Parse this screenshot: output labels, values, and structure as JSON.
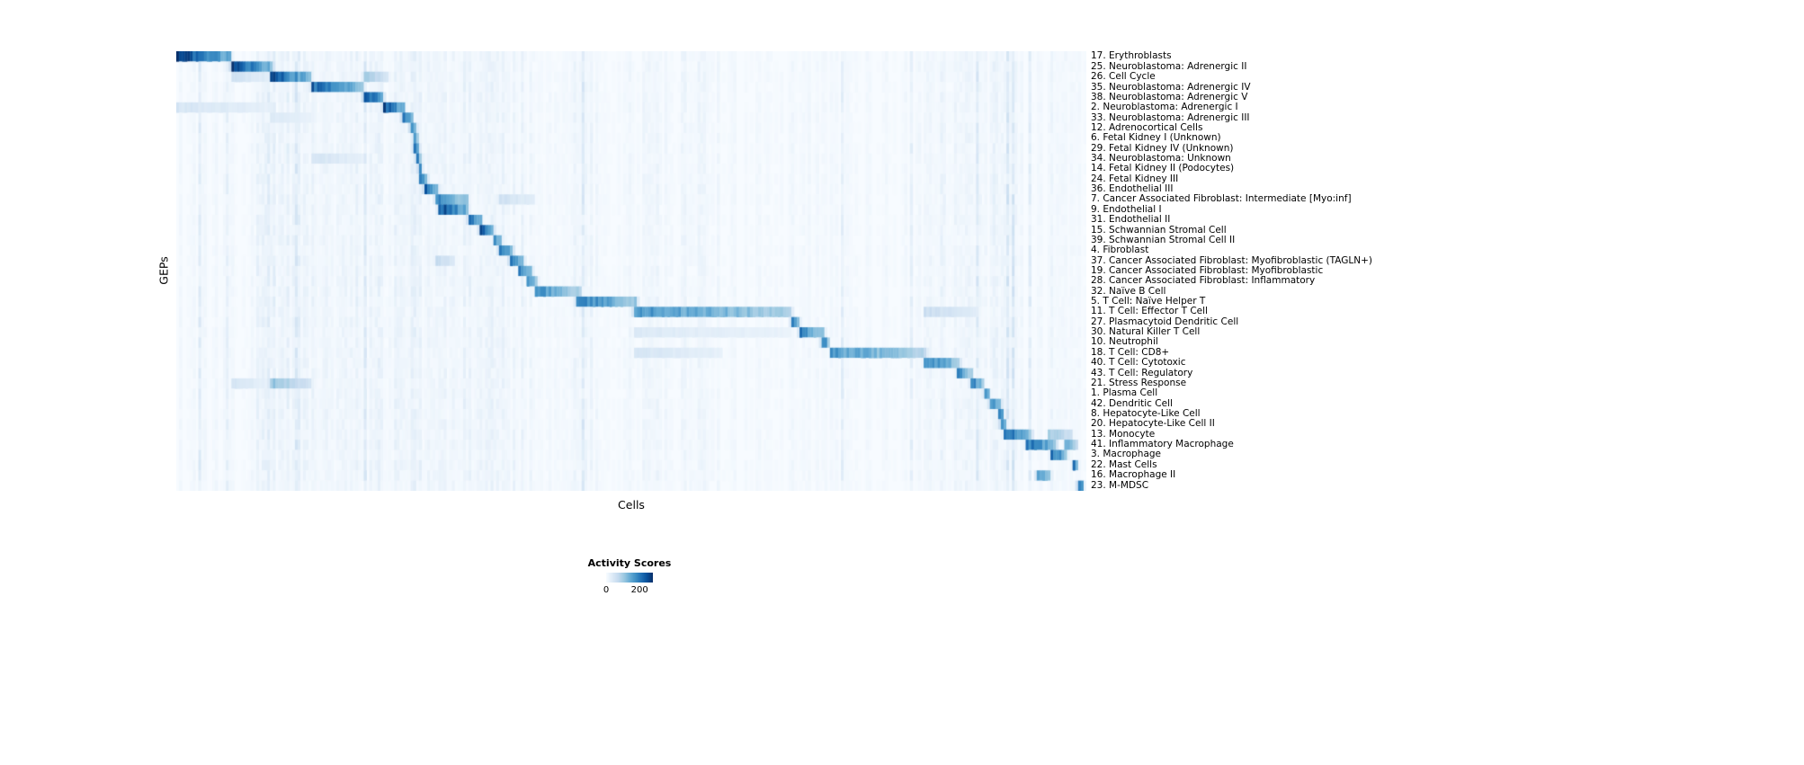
{
  "figure": {
    "ylabel": "GEPs",
    "xlabel": "Cells"
  },
  "legend": {
    "title": "Activity Scores",
    "min_label": "0",
    "max_label": "200",
    "min_value": 0,
    "max_value": 200
  },
  "chart_data": {
    "type": "heatmap",
    "title": "",
    "xlabel": "Cells",
    "ylabel": "GEPs",
    "colormap": "Blues",
    "colormap_stops": [
      "#f7fbff",
      "#deebf7",
      "#c6dbef",
      "#9ecae1",
      "#6baed6",
      "#4292c6",
      "#2171b5",
      "#08519c",
      "#08306b"
    ],
    "colorbar_ticks": [
      0,
      200
    ],
    "scale_domain": [
      0,
      280
    ],
    "legend_position": "bottom-center",
    "grid": false,
    "rows": [
      {
        "label": "17. Erythroblasts",
        "band": [
          0.0,
          0.062
        ],
        "peak": 280
      },
      {
        "label": "25. Neuroblastoma: Adrenergic II",
        "band": [
          0.062,
          0.107
        ],
        "peak": 260
      },
      {
        "label": "26. Cell Cycle",
        "band": [
          0.103,
          0.149
        ],
        "peak": 260,
        "secondary": [
          [
            0.205,
            0.232,
            110
          ],
          [
            0.062,
            0.103,
            60
          ]
        ]
      },
      {
        "label": "35. Neuroblastoma: Adrenergic IV",
        "band": [
          0.148,
          0.207
        ],
        "peak": 240
      },
      {
        "label": "38. Neuroblastoma: Adrenergic V",
        "band": [
          0.207,
          0.228
        ],
        "peak": 280
      },
      {
        "label": "2. Neuroblastoma: Adrenergic I",
        "band": [
          0.228,
          0.252
        ],
        "peak": 260,
        "secondary": [
          [
            0.0,
            0.107,
            50
          ]
        ]
      },
      {
        "label": "33. Neuroblastoma: Adrenergic III",
        "band": [
          0.248,
          0.262
        ],
        "peak": 240,
        "secondary": [
          [
            0.103,
            0.15,
            40
          ]
        ]
      },
      {
        "label": "12. Adrenocortical Cells",
        "band": [
          0.258,
          0.2635
        ],
        "peak": 230
      },
      {
        "label": "6. Fetal Kidney I (Unknown)",
        "band": [
          0.26,
          0.2655
        ],
        "peak": 230
      },
      {
        "label": "29. Fetal Kidney IV (Unknown)",
        "band": [
          0.262,
          0.267
        ],
        "peak": 220
      },
      {
        "label": "34. Neuroblastoma: Unknown",
        "band": [
          0.264,
          0.2685
        ],
        "peak": 220,
        "secondary": [
          [
            0.15,
            0.207,
            50
          ]
        ]
      },
      {
        "label": "14. Fetal Kidney II (Podocytes)",
        "band": [
          0.266,
          0.2705
        ],
        "peak": 230
      },
      {
        "label": "24. Fetal Kidney III",
        "band": [
          0.268,
          0.2745
        ],
        "peak": 240
      },
      {
        "label": "36. Endothelial III",
        "band": [
          0.2725,
          0.288
        ],
        "peak": 250
      },
      {
        "label": "7. Cancer Associated Fibroblast: Intermediate [Myo:inf]",
        "band": [
          0.285,
          0.32
        ],
        "peak": 210,
        "secondary": [
          [
            0.355,
            0.395,
            60
          ]
        ]
      },
      {
        "label": "9. Endothelial I",
        "band": [
          0.288,
          0.322
        ],
        "peak": 270
      },
      {
        "label": "31. Endothelial II",
        "band": [
          0.32,
          0.336
        ],
        "peak": 250
      },
      {
        "label": "15. Schwannian Stromal Cell",
        "band": [
          0.334,
          0.35
        ],
        "peak": 250
      },
      {
        "label": "39. Schwannian Stromal Cell II",
        "band": [
          0.347,
          0.357
        ],
        "peak": 230
      },
      {
        "label": "4. Fibroblast",
        "band": [
          0.355,
          0.37
        ],
        "peak": 250
      },
      {
        "label": "37. Cancer Associated Fibroblast: Myofibroblastic (TAGLN+)",
        "band": [
          0.366,
          0.381
        ],
        "peak": 240,
        "secondary": [
          [
            0.285,
            0.305,
            80
          ]
        ]
      },
      {
        "label": "19. Cancer Associated Fibroblast: Myofibroblastic",
        "band": [
          0.376,
          0.39
        ],
        "peak": 230
      },
      {
        "label": "28. Cancer Associated Fibroblast: Inflammatory",
        "band": [
          0.385,
          0.396
        ],
        "peak": 220
      },
      {
        "label": "32. Naïve B Cell",
        "band": [
          0.395,
          0.445
        ],
        "peak": 190
      },
      {
        "label": "5. T Cell: Naïve Helper T",
        "band": [
          0.44,
          0.505
        ],
        "peak": 220
      },
      {
        "label": "11. T Cell: Effector T Cell",
        "band": [
          0.503,
          0.676
        ],
        "peak": 190,
        "secondary": [
          [
            0.82,
            0.88,
            70
          ]
        ]
      },
      {
        "label": "27. Plasmacytoid Dendritic Cell",
        "band": [
          0.676,
          0.684
        ],
        "peak": 240
      },
      {
        "label": "30. Natural Killer T Cell",
        "band": [
          0.684,
          0.712
        ],
        "peak": 210,
        "secondary": [
          [
            0.503,
            0.676,
            40
          ]
        ]
      },
      {
        "label": "10. Neutrophil",
        "band": [
          0.71,
          0.717
        ],
        "peak": 230
      },
      {
        "label": "18. T Cell: CD8+",
        "band": [
          0.717,
          0.823
        ],
        "peak": 180,
        "secondary": [
          [
            0.503,
            0.6,
            50
          ]
        ]
      },
      {
        "label": "40. T Cell: Cytotoxic",
        "band": [
          0.82,
          0.862
        ],
        "peak": 210
      },
      {
        "label": "43. T Cell: Regulatory",
        "band": [
          0.858,
          0.875
        ],
        "peak": 200
      },
      {
        "label": "21. Stress Response",
        "band": [
          0.874,
          0.888
        ],
        "peak": 210,
        "secondary": [
          [
            0.103,
            0.148,
            120
          ],
          [
            0.06,
            0.103,
            50
          ]
        ]
      },
      {
        "label": "1. Plasma Cell",
        "band": [
          0.888,
          0.894
        ],
        "peak": 240
      },
      {
        "label": "42. Dendritic Cell",
        "band": [
          0.893,
          0.906
        ],
        "peak": 220
      },
      {
        "label": "8. Hepatocyte-Like Cell",
        "band": [
          0.904,
          0.909
        ],
        "peak": 240
      },
      {
        "label": "20. Hepatocyte-Like Cell II",
        "band": [
          0.907,
          0.9125
        ],
        "peak": 230
      },
      {
        "label": "13. Monocyte",
        "band": [
          0.91,
          0.938
        ],
        "peak": 240,
        "secondary": [
          [
            0.957,
            0.985,
            110
          ]
        ]
      },
      {
        "label": "41. Inflammatory Macrophage",
        "band": [
          0.933,
          0.968
        ],
        "peak": 230,
        "secondary": [
          [
            0.975,
            0.99,
            160
          ]
        ]
      },
      {
        "label": "3. Macrophage",
        "band": [
          0.962,
          0.979
        ],
        "peak": 240
      },
      {
        "label": "22. Mast Cells",
        "band": [
          0.984,
          0.99
        ],
        "peak": 280
      },
      {
        "label": "16. Macrophage II",
        "band": [
          0.946,
          0.96
        ],
        "peak": 200
      },
      {
        "label": "23. M-MDSC",
        "band": [
          0.99,
          0.998
        ],
        "peak": 280
      }
    ]
  }
}
